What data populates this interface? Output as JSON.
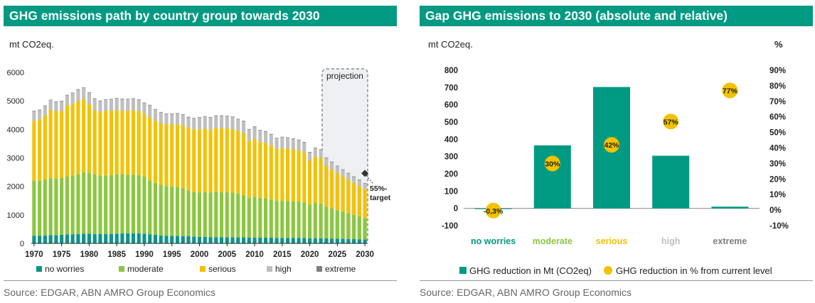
{
  "colors": {
    "no_worries": "#0d9488",
    "moderate": "#8cc63f",
    "serious": "#f2c200",
    "high": "#bfbfbf",
    "extreme": "#7f7f7f",
    "bar_teal": "#009a82",
    "dot_gold": "#f2c200",
    "title_bg": "#009a82"
  },
  "left": {
    "title": "GHG emissions path by country group towards 2030",
    "unit_label": "mt CO2eq.",
    "projection_label": "projection",
    "target_label_line1": "55%-",
    "target_label_line2": "target",
    "source": "Source: EDGAR, ABN AMRO Group Economics",
    "legend": [
      "no worries",
      "moderate",
      "serious",
      "high",
      "extreme"
    ]
  },
  "right": {
    "title": "Gap GHG emissions to 2030 (absolute and relative)",
    "unit_label_left": "mt CO2eq.",
    "unit_label_right": "%",
    "source": "Source: EDGAR, ABN AMRO Group Economics",
    "legend": [
      "GHG reduction in Mt (CO2eq)",
      "GHG reduction in % from current level"
    ]
  },
  "chart_data": [
    {
      "type": "bar",
      "stacked": true,
      "title": "GHG emissions path by country group towards 2030",
      "ylabel": "mt CO2eq.",
      "ylim": [
        0,
        6000
      ],
      "yticks": [
        0,
        1000,
        2000,
        3000,
        4000,
        5000,
        6000
      ],
      "xticks": [
        1970,
        1975,
        1980,
        1985,
        1990,
        1995,
        2000,
        2005,
        2010,
        2015,
        2020,
        2025,
        2030
      ],
      "projection_start": 2023,
      "annotation": "55%-target",
      "legend_position": "bottom",
      "x": [
        1970,
        1971,
        1972,
        1973,
        1974,
        1975,
        1976,
        1977,
        1978,
        1979,
        1980,
        1981,
        1982,
        1983,
        1984,
        1985,
        1986,
        1987,
        1988,
        1989,
        1990,
        1991,
        1992,
        1993,
        1994,
        1995,
        1996,
        1997,
        1998,
        1999,
        2000,
        2001,
        2002,
        2003,
        2004,
        2005,
        2006,
        2007,
        2008,
        2009,
        2010,
        2011,
        2012,
        2013,
        2014,
        2015,
        2016,
        2017,
        2018,
        2019,
        2020,
        2021,
        2022,
        2023,
        2024,
        2025,
        2026,
        2027,
        2028,
        2029,
        2030
      ],
      "series": [
        {
          "name": "no worries",
          "values": [
            270,
            270,
            280,
            290,
            290,
            300,
            310,
            320,
            330,
            340,
            340,
            330,
            330,
            330,
            330,
            340,
            350,
            350,
            350,
            350,
            340,
            320,
            300,
            280,
            270,
            260,
            260,
            250,
            250,
            240,
            230,
            230,
            220,
            220,
            220,
            210,
            210,
            210,
            210,
            200,
            200,
            200,
            200,
            200,
            190,
            190,
            190,
            190,
            190,
            190,
            180,
            180,
            180,
            175,
            170,
            165,
            160,
            155,
            150,
            145,
            140
          ]
        },
        {
          "name": "moderate",
          "values": [
            1930,
            1930,
            1960,
            2000,
            1990,
            1990,
            2030,
            2060,
            2100,
            2160,
            2140,
            2100,
            2050,
            2050,
            2070,
            2080,
            2080,
            2060,
            2060,
            2050,
            2000,
            1880,
            1820,
            1780,
            1740,
            1730,
            1720,
            1690,
            1610,
            1570,
            1560,
            1570,
            1560,
            1600,
            1580,
            1590,
            1570,
            1550,
            1480,
            1400,
            1440,
            1400,
            1380,
            1340,
            1300,
            1300,
            1300,
            1280,
            1280,
            1250,
            1180,
            1240,
            1220,
            1110,
            1060,
            1000,
            950,
            900,
            850,
            800,
            740
          ]
        },
        {
          "name": "serious",
          "values": [
            2100,
            2150,
            2250,
            2400,
            2350,
            2350,
            2500,
            2520,
            2580,
            2560,
            2400,
            2240,
            2220,
            2270,
            2260,
            2260,
            2220,
            2240,
            2260,
            2240,
            2200,
            2220,
            2180,
            2160,
            2170,
            2190,
            2200,
            2200,
            2190,
            2190,
            2210,
            2220,
            2200,
            2230,
            2240,
            2240,
            2230,
            2190,
            2180,
            2000,
            2040,
            1960,
            1950,
            1900,
            1820,
            1850,
            1840,
            1830,
            1800,
            1750,
            1540,
            1620,
            1600,
            1440,
            1370,
            1300,
            1240,
            1180,
            1120,
            1070,
            1020
          ]
        },
        {
          "name": "high",
          "values": [
            330,
            320,
            330,
            330,
            330,
            340,
            350,
            370,
            380,
            390,
            400,
            400,
            390,
            380,
            390,
            400,
            410,
            400,
            400,
            390,
            380,
            420,
            390,
            370,
            360,
            360,
            370,
            370,
            370,
            380,
            410,
            420,
            430,
            420,
            430,
            420,
            420,
            400,
            410,
            390,
            410,
            400,
            390,
            380,
            370,
            380,
            370,
            360,
            350,
            350,
            290,
            300,
            280,
            270,
            250,
            240,
            230,
            220,
            210,
            200,
            190
          ]
        },
        {
          "name": "extreme",
          "values": [
            20,
            20,
            20,
            20,
            20,
            20,
            20,
            20,
            20,
            20,
            20,
            20,
            20,
            20,
            20,
            20,
            20,
            20,
            20,
            20,
            20,
            20,
            20,
            20,
            20,
            20,
            20,
            20,
            20,
            20,
            20,
            20,
            20,
            20,
            20,
            20,
            20,
            20,
            20,
            20,
            20,
            20,
            20,
            20,
            20,
            20,
            20,
            20,
            20,
            20,
            20,
            20,
            20,
            20,
            20,
            20,
            20,
            20,
            20,
            20,
            20
          ]
        }
      ]
    },
    {
      "type": "bar",
      "title": "Gap GHG emissions to 2030 (absolute and relative)",
      "ylabel": "mt CO2eq.",
      "y2label": "%",
      "ylim": [
        -100,
        800
      ],
      "yticks": [
        -100,
        0,
        100,
        200,
        300,
        400,
        500,
        600,
        700,
        800
      ],
      "y2lim": [
        -10,
        90
      ],
      "y2ticks": [
        "-10%",
        "0%",
        "10%",
        "20%",
        "30%",
        "40%",
        "50%",
        "60%",
        "70%",
        "80%",
        "90%"
      ],
      "categories": [
        "no worries",
        "moderate",
        "serious",
        "high",
        "extreme"
      ],
      "category_colors": [
        "#009a82",
        "#8cc63f",
        "#f2c200",
        "#bfbfbf",
        "#7f7f7f"
      ],
      "legend_position": "bottom",
      "series": [
        {
          "name": "GHG reduction in Mt (CO2eq)",
          "type": "bar",
          "values": [
            -2,
            365,
            703,
            305,
            10
          ]
        },
        {
          "name": "GHG reduction in % from current level",
          "type": "scatter",
          "axis": "right",
          "values": [
            -0.3,
            30,
            42,
            57,
            77
          ],
          "labels": [
            "-0,3%",
            "30%",
            "42%",
            "57%",
            "77%"
          ]
        }
      ]
    }
  ]
}
